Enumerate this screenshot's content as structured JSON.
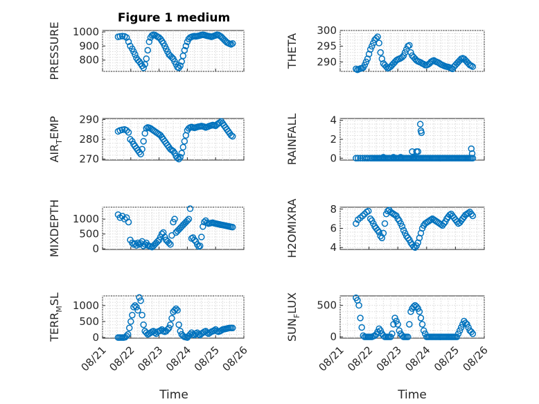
{
  "figure_title": "Figure 1 medium",
  "chart_data": [
    {
      "type": "scatter",
      "ylabel": "PRESSURE",
      "ylim": [
        720,
        1010
      ],
      "yticks": [
        800,
        900,
        1000
      ],
      "xlim": [
        0,
        5
      ],
      "title": "Figure 1 medium",
      "x": [
        0.55,
        0.62,
        0.7,
        0.78,
        0.85,
        0.92,
        0.98,
        1.05,
        1.1,
        1.15,
        1.2,
        1.25,
        1.3,
        1.35,
        1.4,
        1.45,
        1.5,
        1.55,
        1.6,
        1.65,
        1.7,
        1.75,
        1.8,
        1.85,
        1.9,
        1.95,
        2.0,
        2.05,
        2.1,
        2.15,
        2.2,
        2.25,
        2.3,
        2.35,
        2.4,
        2.45,
        2.5,
        2.55,
        2.6,
        2.65,
        2.7,
        2.75,
        2.8,
        2.85,
        2.9,
        2.95,
        3.0,
        3.05,
        3.1,
        3.15,
        3.2,
        3.25,
        3.3,
        3.35,
        3.4,
        3.45,
        3.5,
        3.55,
        3.6,
        3.65,
        3.7,
        3.75,
        3.8,
        3.85,
        3.9,
        3.95,
        4.0,
        4.05,
        4.1,
        4.15,
        4.2,
        4.25,
        4.3,
        4.35,
        4.4,
        4.45,
        4.5,
        4.55,
        4.6
      ],
      "y": [
        965,
        968,
        970,
        968,
        960,
        930,
        900,
        880,
        860,
        840,
        815,
        800,
        790,
        775,
        760,
        745,
        770,
        810,
        870,
        930,
        960,
        975,
        980,
        978,
        972,
        965,
        960,
        950,
        935,
        920,
        900,
        880,
        860,
        840,
        830,
        820,
        810,
        790,
        770,
        750,
        745,
        760,
        790,
        830,
        870,
        900,
        930,
        950,
        960,
        965,
        968,
        970,
        968,
        970,
        972,
        975,
        978,
        980,
        978,
        975,
        972,
        970,
        968,
        965,
        968,
        972,
        975,
        980,
        978,
        972,
        965,
        955,
        945,
        935,
        925,
        920,
        915,
        912,
        918
      ]
    },
    {
      "type": "scatter",
      "ylabel": "THETA",
      "ylim": [
        287,
        300
      ],
      "yticks": [
        290,
        295,
        300
      ],
      "xlim": [
        0,
        5
      ],
      "x": [
        0.55,
        0.6,
        0.65,
        0.7,
        0.75,
        0.8,
        0.85,
        0.9,
        0.95,
        1.0,
        1.05,
        1.1,
        1.15,
        1.2,
        1.25,
        1.3,
        1.35,
        1.4,
        1.45,
        1.5,
        1.55,
        1.6,
        1.65,
        1.7,
        1.75,
        1.8,
        1.85,
        1.9,
        1.95,
        2.0,
        2.05,
        2.1,
        2.15,
        2.2,
        2.25,
        2.3,
        2.35,
        2.4,
        2.45,
        2.5,
        2.55,
        2.6,
        2.65,
        2.7,
        2.75,
        2.8,
        2.85,
        2.9,
        2.95,
        3.0,
        3.05,
        3.1,
        3.15,
        3.2,
        3.25,
        3.3,
        3.35,
        3.4,
        3.45,
        3.5,
        3.55,
        3.6,
        3.65,
        3.7,
        3.75,
        3.8,
        3.85,
        3.9,
        3.95,
        4.0,
        4.05,
        4.1,
        4.15,
        4.2,
        4.25,
        4.3,
        4.35,
        4.4,
        4.45,
        4.5,
        4.55,
        4.6
      ],
      "y": [
        287.8,
        287.5,
        287.7,
        287.9,
        288.0,
        288.2,
        289.0,
        290.0,
        291.0,
        292.5,
        294.0,
        295.0,
        296.0,
        297.0,
        297.5,
        298.0,
        296.0,
        293.0,
        291.0,
        289.5,
        289.0,
        288.5,
        288.0,
        288.2,
        288.5,
        289.0,
        289.5,
        290.0,
        290.5,
        290.8,
        291.0,
        291.2,
        291.5,
        292.0,
        293.0,
        294.0,
        295.0,
        295.3,
        293.0,
        292.0,
        291.5,
        291.0,
        290.5,
        290.2,
        290.0,
        289.8,
        289.5,
        289.3,
        289.0,
        289.0,
        289.2,
        289.5,
        290.0,
        290.3,
        290.5,
        290.2,
        290.0,
        289.8,
        289.5,
        289.2,
        289.0,
        288.8,
        288.6,
        288.5,
        288.4,
        288.2,
        288.0,
        287.8,
        288.5,
        289.0,
        289.5,
        290.0,
        290.5,
        291.0,
        291.2,
        291.0,
        290.5,
        290.0,
        289.5,
        289.0,
        288.8,
        288.5
      ]
    },
    {
      "type": "scatter",
      "ylabel": "AIR",
      "ylabel_sub": "T",
      "ylabel_rest": "EMP",
      "ylim": [
        269.5,
        290.5
      ],
      "yticks": [
        270,
        280,
        290
      ],
      "xlim": [
        0,
        5
      ],
      "x": [
        0.55,
        0.62,
        0.7,
        0.78,
        0.85,
        0.92,
        0.98,
        1.05,
        1.1,
        1.15,
        1.2,
        1.25,
        1.3,
        1.35,
        1.4,
        1.45,
        1.5,
        1.55,
        1.6,
        1.65,
        1.7,
        1.75,
        1.8,
        1.85,
        1.9,
        1.95,
        2.0,
        2.05,
        2.1,
        2.15,
        2.2,
        2.25,
        2.3,
        2.35,
        2.4,
        2.45,
        2.5,
        2.55,
        2.6,
        2.65,
        2.7,
        2.75,
        2.8,
        2.85,
        2.9,
        2.95,
        3.0,
        3.05,
        3.1,
        3.15,
        3.2,
        3.25,
        3.3,
        3.35,
        3.4,
        3.45,
        3.5,
        3.55,
        3.6,
        3.65,
        3.7,
        3.75,
        3.8,
        3.85,
        3.9,
        3.95,
        4.0,
        4.05,
        4.1,
        4.15,
        4.2,
        4.25,
        4.3,
        4.35,
        4.4,
        4.45,
        4.5,
        4.55,
        4.6
      ],
      "y": [
        284.0,
        284.5,
        284.8,
        285.0,
        284.5,
        283.5,
        280.0,
        279.0,
        277.5,
        276.5,
        275.5,
        274.5,
        273.5,
        272.5,
        275.0,
        279.0,
        283.0,
        285.5,
        286.0,
        285.8,
        285.5,
        285.0,
        284.5,
        284.0,
        283.5,
        283.0,
        282.5,
        282.0,
        281.0,
        280.0,
        279.0,
        278.0,
        277.0,
        276.0,
        275.0,
        274.5,
        274.0,
        273.0,
        271.5,
        270.5,
        270.0,
        271.0,
        273.0,
        276.0,
        279.0,
        282.0,
        284.5,
        285.5,
        286.0,
        286.2,
        286.0,
        285.8,
        286.0,
        286.2,
        286.4,
        286.5,
        286.7,
        286.5,
        286.3,
        286.0,
        286.2,
        286.5,
        286.8,
        287.0,
        287.2,
        287.0,
        286.8,
        287.5,
        288.0,
        288.5,
        289.0,
        288.0,
        287.0,
        286.0,
        285.0,
        284.0,
        283.0,
        282.0,
        281.5
      ]
    },
    {
      "type": "scatter",
      "ylabel": "RAINFALL",
      "ylim": [
        -0.2,
        4.2
      ],
      "yticks": [
        0,
        2,
        4
      ],
      "xlim": [
        0,
        5
      ],
      "x": [
        0.55,
        0.62,
        0.7,
        0.78,
        0.85,
        0.92,
        0.98,
        1.05,
        1.1,
        1.15,
        1.2,
        1.25,
        1.3,
        1.35,
        1.4,
        1.45,
        1.5,
        1.55,
        1.6,
        1.65,
        1.7,
        1.75,
        1.8,
        1.85,
        1.9,
        1.95,
        2.0,
        2.05,
        2.1,
        2.15,
        2.2,
        2.25,
        2.3,
        2.35,
        2.4,
        2.45,
        2.5,
        2.55,
        2.6,
        2.65,
        2.7,
        2.75,
        2.8,
        2.85,
        2.9,
        2.95,
        3.0,
        3.05,
        3.1,
        3.15,
        3.2,
        3.25,
        3.3,
        3.35,
        3.4,
        3.45,
        3.5,
        3.55,
        3.6,
        3.65,
        3.7,
        3.75,
        3.8,
        3.85,
        3.9,
        3.95,
        4.0,
        4.05,
        4.1,
        4.15,
        4.2,
        4.25,
        4.3,
        4.35,
        4.4,
        4.45,
        4.5,
        4.55,
        4.6,
        1.5,
        1.85,
        2.1,
        2.5,
        2.55,
        2.65,
        2.7,
        2.78,
        2.8,
        2.82,
        4.55,
        4.58
      ],
      "y": [
        0,
        0,
        0,
        0,
        0,
        0,
        0,
        0,
        0,
        0,
        0,
        0,
        0,
        0,
        0,
        0,
        0,
        0,
        0,
        0,
        0,
        0,
        0,
        0,
        0,
        0,
        0,
        0,
        0,
        0,
        0,
        0,
        0,
        0,
        0,
        0,
        0,
        0,
        0,
        0,
        0,
        0,
        0,
        0,
        0,
        0,
        0,
        0,
        0,
        0,
        0,
        0,
        0,
        0,
        0,
        0,
        0,
        0,
        0,
        0,
        0,
        0,
        0,
        0,
        0,
        0,
        0,
        0,
        0,
        0,
        0,
        0,
        0,
        0,
        0,
        0,
        0,
        0,
        0,
        0.1,
        0.1,
        0.1,
        0.7,
        0.1,
        0.7,
        0.7,
        3.6,
        2.9,
        2.7,
        1.0,
        0.5
      ]
    },
    {
      "type": "scatter",
      "ylabel": "MIXDEPTH",
      "ylim": [
        -20,
        1400
      ],
      "yticks": [
        0,
        500,
        1000
      ],
      "xlim": [
        0,
        5
      ],
      "x": [
        0.55,
        0.62,
        0.7,
        0.78,
        0.85,
        0.92,
        0.98,
        1.05,
        1.1,
        1.15,
        1.2,
        1.25,
        1.3,
        1.35,
        1.4,
        1.45,
        1.5,
        1.55,
        1.6,
        1.65,
        1.7,
        1.75,
        1.8,
        1.85,
        1.9,
        1.95,
        2.0,
        2.05,
        2.1,
        2.15,
        2.2,
        2.25,
        2.3,
        2.35,
        2.4,
        2.45,
        2.5,
        2.55,
        2.6,
        2.65,
        2.7,
        2.75,
        2.8,
        2.85,
        2.9,
        2.95,
        3.0,
        3.05,
        3.1,
        3.15,
        3.2,
        3.25,
        3.3,
        3.35,
        3.4,
        3.45,
        3.5,
        3.55,
        3.6,
        3.65,
        3.7,
        3.75,
        3.8,
        3.85,
        3.9,
        3.95,
        4.0,
        4.05,
        4.1,
        4.15,
        4.2,
        4.25,
        4.3,
        4.35,
        4.4,
        4.45,
        4.5,
        4.55,
        4.6
      ],
      "y": [
        1150,
        1050,
        1100,
        1000,
        1050,
        900,
        300,
        200,
        150,
        180,
        120,
        200,
        150,
        180,
        250,
        100,
        150,
        200,
        120,
        100,
        80,
        60,
        100,
        150,
        200,
        250,
        300,
        400,
        500,
        550,
        400,
        300,
        250,
        200,
        150,
        450,
        900,
        1000,
        550,
        600,
        650,
        700,
        750,
        800,
        850,
        900,
        950,
        1000,
        1350,
        350,
        380,
        300,
        250,
        150,
        80,
        100,
        400,
        750,
        900,
        950,
        880,
        850,
        860,
        870,
        880,
        860,
        850,
        840,
        830,
        820,
        810,
        800,
        790,
        780,
        770,
        760,
        750,
        740,
        730
      ]
    },
    {
      "type": "scatter",
      "ylabel": "H2OMIXRA",
      "ylim": [
        3.8,
        8.2
      ],
      "yticks": [
        4,
        6,
        8
      ],
      "xlim": [
        0,
        5
      ],
      "x": [
        0.55,
        0.62,
        0.7,
        0.78,
        0.85,
        0.92,
        0.98,
        1.05,
        1.1,
        1.15,
        1.2,
        1.25,
        1.3,
        1.35,
        1.4,
        1.45,
        1.5,
        1.55,
        1.6,
        1.65,
        1.7,
        1.75,
        1.8,
        1.85,
        1.9,
        1.95,
        2.0,
        2.05,
        2.1,
        2.15,
        2.2,
        2.25,
        2.3,
        2.35,
        2.4,
        2.45,
        2.5,
        2.55,
        2.6,
        2.65,
        2.7,
        2.75,
        2.8,
        2.85,
        2.9,
        2.95,
        3.0,
        3.05,
        3.1,
        3.15,
        3.2,
        3.25,
        3.3,
        3.35,
        3.4,
        3.45,
        3.5,
        3.55,
        3.6,
        3.65,
        3.7,
        3.75,
        3.8,
        3.85,
        3.9,
        3.95,
        4.0,
        4.05,
        4.1,
        4.15,
        4.2,
        4.25,
        4.3,
        4.35,
        4.4,
        4.45,
        4.5,
        4.55,
        4.6
      ],
      "y": [
        6.5,
        6.9,
        7.1,
        7.3,
        7.5,
        7.7,
        7.8,
        7.0,
        6.8,
        6.5,
        6.2,
        6.0,
        5.8,
        5.6,
        5.2,
        5.0,
        5.5,
        6.5,
        7.5,
        7.8,
        7.9,
        7.7,
        7.6,
        7.5,
        7.4,
        7.3,
        7.0,
        6.8,
        6.5,
        6.2,
        5.8,
        5.5,
        5.2,
        5.0,
        4.8,
        4.5,
        4.3,
        4.1,
        4.0,
        4.2,
        4.5,
        5.0,
        5.5,
        6.0,
        6.3,
        6.5,
        6.6,
        6.7,
        6.8,
        6.9,
        7.0,
        6.9,
        6.8,
        6.7,
        6.6,
        6.5,
        6.4,
        6.3,
        6.5,
        6.7,
        7.0,
        7.2,
        7.4,
        7.5,
        7.3,
        7.1,
        6.9,
        6.7,
        6.5,
        6.6,
        6.8,
        7.0,
        7.2,
        7.4,
        7.5,
        7.6,
        7.7,
        7.5,
        7.3
      ]
    },
    {
      "type": "scatter",
      "ylabel": "TERR",
      "ylabel_sub": "M",
      "ylabel_rest": "SL",
      "ylim": [
        -20,
        1300
      ],
      "yticks": [
        0,
        500,
        1000
      ],
      "xlim": [
        0,
        5
      ],
      "x": [
        0.55,
        0.6,
        0.65,
        0.7,
        0.75,
        0.8,
        0.85,
        0.9,
        0.95,
        1.0,
        1.05,
        1.1,
        1.15,
        1.2,
        1.25,
        1.3,
        1.35,
        1.4,
        1.45,
        1.5,
        1.55,
        1.6,
        1.65,
        1.7,
        1.75,
        1.8,
        1.85,
        1.9,
        1.95,
        2.0,
        2.05,
        2.1,
        2.15,
        2.2,
        2.25,
        2.3,
        2.35,
        2.4,
        2.45,
        2.5,
        2.55,
        2.6,
        2.65,
        2.7,
        2.75,
        2.8,
        2.85,
        2.9,
        2.95,
        3.0,
        3.05,
        3.1,
        3.15,
        3.2,
        3.25,
        3.3,
        3.35,
        3.4,
        3.45,
        3.5,
        3.55,
        3.6,
        3.65,
        3.7,
        3.75,
        3.8,
        3.85,
        3.9,
        3.95,
        4.0,
        4.05,
        4.1,
        4.15,
        4.2,
        4.25,
        4.3,
        4.35,
        4.4,
        4.45,
        4.5,
        4.55,
        4.6
      ],
      "y": [
        0,
        0,
        0,
        0,
        0,
        10,
        50,
        100,
        300,
        500,
        700,
        950,
        1000,
        950,
        850,
        1250,
        1150,
        700,
        400,
        200,
        150,
        100,
        120,
        150,
        180,
        200,
        150,
        120,
        180,
        200,
        220,
        250,
        200,
        180,
        200,
        250,
        300,
        400,
        600,
        800,
        850,
        900,
        850,
        400,
        200,
        100,
        50,
        20,
        10,
        0,
        50,
        100,
        150,
        100,
        80,
        120,
        150,
        100,
        80,
        120,
        150,
        180,
        200,
        150,
        120,
        150,
        180,
        200,
        220,
        250,
        200,
        180,
        200,
        220,
        250,
        260,
        270,
        280,
        290,
        300,
        300,
        300
      ]
    },
    {
      "type": "scatter",
      "ylabel": "SUN",
      "ylabel_sub": "F",
      "ylabel_rest": "LUX",
      "ylim": [
        -20,
        650
      ],
      "yticks": [
        0,
        500
      ],
      "xlim": [
        0,
        5
      ],
      "x": [
        0.55,
        0.6,
        0.65,
        0.7,
        0.75,
        0.8,
        0.85,
        0.9,
        0.95,
        1.0,
        1.05,
        1.1,
        1.15,
        1.2,
        1.25,
        1.3,
        1.35,
        1.4,
        1.45,
        1.5,
        1.55,
        1.6,
        1.65,
        1.7,
        1.75,
        1.8,
        1.85,
        1.9,
        1.95,
        2.0,
        2.05,
        2.1,
        2.15,
        2.2,
        2.25,
        2.3,
        2.35,
        2.4,
        2.45,
        2.5,
        2.55,
        2.6,
        2.65,
        2.7,
        2.75,
        2.8,
        2.85,
        2.9,
        2.95,
        3.0,
        3.05,
        3.1,
        3.15,
        3.2,
        3.25,
        3.3,
        3.35,
        3.4,
        3.45,
        3.5,
        3.55,
        3.6,
        3.65,
        3.7,
        3.75,
        3.8,
        3.85,
        3.9,
        3.95,
        4.0,
        4.05,
        4.1,
        4.15,
        4.2,
        4.25,
        4.3,
        4.35,
        4.4,
        4.45,
        4.5,
        4.55,
        4.6
      ],
      "y": [
        620,
        580,
        500,
        300,
        150,
        20,
        0,
        0,
        0,
        0,
        0,
        0,
        10,
        20,
        40,
        80,
        130,
        100,
        50,
        20,
        0,
        0,
        0,
        0,
        0,
        50,
        200,
        300,
        250,
        200,
        100,
        50,
        20,
        0,
        0,
        0,
        0,
        200,
        400,
        450,
        480,
        500,
        480,
        450,
        400,
        300,
        200,
        100,
        50,
        0,
        0,
        0,
        0,
        0,
        0,
        0,
        0,
        0,
        0,
        0,
        0,
        0,
        0,
        0,
        0,
        0,
        0,
        0,
        0,
        0,
        0,
        50,
        100,
        150,
        200,
        250,
        220,
        200,
        150,
        100,
        80,
        50
      ]
    }
  ],
  "x_tick_labels": [
    "08/21",
    "08/22",
    "08/23",
    "08/24",
    "08/25",
    "08/26"
  ],
  "xlabel": "Time"
}
